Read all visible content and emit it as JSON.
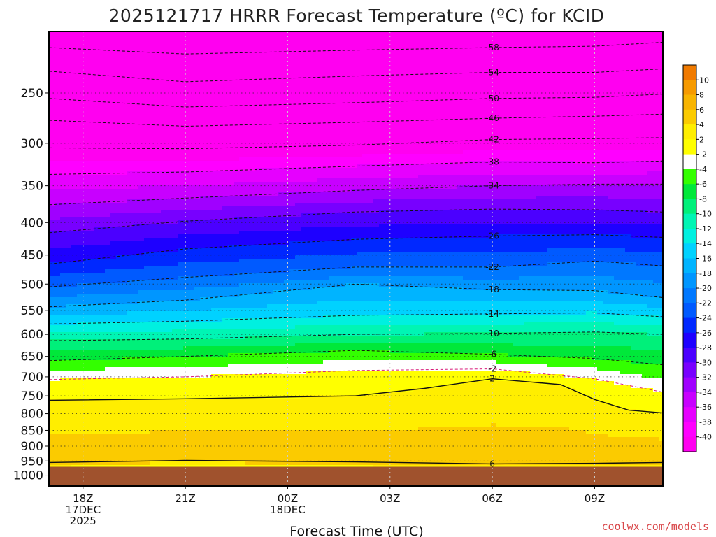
{
  "chart_data": {
    "type": "heatmap",
    "title": "2025121717 HRRR Forecast Temperature (ºC) for KCID",
    "xlabel": "Forecast Time (UTC)",
    "ylabel": "",
    "credit": "coolwx.com/models",
    "x_ticks": [
      {
        "hour": 0,
        "label": "18Z",
        "date": "17DEC",
        "year": "2025"
      },
      {
        "hour": 3,
        "label": "21Z",
        "date": "",
        "year": ""
      },
      {
        "hour": 6,
        "label": "00Z",
        "date": "18DEC",
        "year": ""
      },
      {
        "hour": 9,
        "label": "03Z",
        "date": "",
        "year": ""
      },
      {
        "hour": 12,
        "label": "06Z",
        "date": "",
        "year": ""
      },
      {
        "hour": 15,
        "label": "09Z",
        "date": "",
        "year": ""
      }
    ],
    "xlim": [
      -1,
      17
    ],
    "y_ticks": [
      250,
      300,
      350,
      400,
      450,
      500,
      550,
      600,
      650,
      700,
      750,
      800,
      850,
      900,
      950,
      1000
    ],
    "ylim": [
      200,
      1040
    ],
    "y_scale": "log",
    "ground_pressure": 970,
    "colorbar": {
      "levels": [
        10,
        8,
        6,
        4,
        2,
        -2,
        -4,
        -6,
        -8,
        -10,
        -12,
        -14,
        -16,
        -18,
        -20,
        -22,
        -24,
        -26,
        -28,
        -30,
        -32,
        -34,
        -36,
        -38,
        -40
      ],
      "colors": [
        "#f07a00",
        "#f69a00",
        "#f8b400",
        "#fbcb00",
        "#ffee00",
        "#ffff00",
        "#ffffff",
        "#33ff00",
        "#00e83a",
        "#00f07a",
        "#00f5b4",
        "#00f0e0",
        "#00d2ff",
        "#00b4ff",
        "#0096ff",
        "#0078ff",
        "#005aff",
        "#0028ff",
        "#1e00ff",
        "#4b00ff",
        "#7800ff",
        "#a000ff",
        "#c800ff",
        "#e600ff",
        "#ff00ff",
        "#ff00f0"
      ]
    },
    "contours": [
      {
        "value": -58,
        "label": "-58",
        "points": [
          [
            -1,
            212
          ],
          [
            3,
            217
          ],
          [
            8,
            214
          ],
          [
            12,
            212
          ],
          [
            15,
            211
          ],
          [
            17,
            208
          ]
        ]
      },
      {
        "value": -54,
        "label": "-54",
        "points": [
          [
            -1,
            231
          ],
          [
            3,
            240
          ],
          [
            8,
            235
          ],
          [
            12,
            232
          ],
          [
            15,
            232
          ],
          [
            17,
            229
          ]
        ]
      },
      {
        "value": -50,
        "label": "-50",
        "points": [
          [
            -1,
            255
          ],
          [
            3,
            263
          ],
          [
            8,
            259
          ],
          [
            12,
            255
          ],
          [
            15,
            254
          ],
          [
            17,
            251
          ]
        ]
      },
      {
        "value": -46,
        "label": "-46",
        "points": [
          [
            -1,
            276
          ],
          [
            3,
            282
          ],
          [
            8,
            278
          ],
          [
            12,
            274
          ],
          [
            15,
            272
          ],
          [
            17,
            270
          ]
        ]
      },
      {
        "value": -42,
        "label": "-42",
        "points": [
          [
            -1,
            305
          ],
          [
            3,
            306
          ],
          [
            8,
            302
          ],
          [
            12,
            296
          ],
          [
            15,
            295
          ],
          [
            17,
            294
          ]
        ]
      },
      {
        "value": -38,
        "label": "-38",
        "points": [
          [
            -1,
            336
          ],
          [
            3,
            333
          ],
          [
            8,
            326
          ],
          [
            12,
            321
          ],
          [
            15,
            322
          ],
          [
            17,
            320
          ]
        ]
      },
      {
        "value": -34,
        "label": "-34",
        "points": [
          [
            -1,
            375
          ],
          [
            3,
            366
          ],
          [
            8,
            356
          ],
          [
            12,
            350
          ],
          [
            15,
            348
          ],
          [
            17,
            348
          ]
        ]
      },
      {
        "value": -30,
        "label": "",
        "points": [
          [
            -1,
            415
          ],
          [
            3,
            398
          ],
          [
            8,
            385
          ],
          [
            12,
            381
          ],
          [
            15,
            382
          ],
          [
            17,
            385
          ]
        ]
      },
      {
        "value": -26,
        "label": "-26",
        "points": [
          [
            -1,
            465
          ],
          [
            3,
            440
          ],
          [
            8,
            425
          ],
          [
            12,
            420
          ],
          [
            15,
            418
          ],
          [
            17,
            422
          ]
        ]
      },
      {
        "value": -22,
        "label": "-22",
        "points": [
          [
            -1,
            505
          ],
          [
            3,
            488
          ],
          [
            8,
            470
          ],
          [
            12,
            470
          ],
          [
            15,
            460
          ],
          [
            17,
            468
          ]
        ]
      },
      {
        "value": -18,
        "label": "-18",
        "points": [
          [
            -1,
            543
          ],
          [
            3,
            530
          ],
          [
            8,
            500
          ],
          [
            12,
            510
          ],
          [
            15,
            512
          ],
          [
            17,
            525
          ]
        ]
      },
      {
        "value": -14,
        "label": "-14",
        "points": [
          [
            -1,
            578
          ],
          [
            3,
            572
          ],
          [
            8,
            560
          ],
          [
            12,
            557
          ],
          [
            15,
            555
          ],
          [
            17,
            563
          ]
        ]
      },
      {
        "value": -10,
        "label": "-10",
        "points": [
          [
            -1,
            614
          ],
          [
            3,
            610
          ],
          [
            8,
            600
          ],
          [
            12,
            598
          ],
          [
            15,
            595
          ],
          [
            17,
            600
          ]
        ]
      },
      {
        "value": -6,
        "label": "-6",
        "points": [
          [
            -1,
            660
          ],
          [
            3,
            650
          ],
          [
            8,
            636
          ],
          [
            12,
            645
          ],
          [
            15,
            655
          ],
          [
            17,
            670
          ]
        ]
      },
      {
        "value": -2,
        "label": "-2",
        "points": [
          [
            -1,
            707
          ],
          [
            3,
            700
          ],
          [
            8,
            684
          ],
          [
            12,
            680
          ],
          [
            15,
            705
          ],
          [
            17,
            740
          ]
        ]
      },
      {
        "value": 2,
        "label": "2",
        "points": [
          [
            -1,
            762
          ],
          [
            3,
            758
          ],
          [
            8,
            750
          ],
          [
            10,
            730
          ],
          [
            12,
            705
          ],
          [
            14,
            720
          ],
          [
            15,
            760
          ],
          [
            16,
            790
          ],
          [
            17,
            798
          ]
        ]
      },
      {
        "value": 6,
        "label": "6",
        "points": [
          [
            -1,
            955
          ],
          [
            3,
            948
          ],
          [
            8,
            953
          ],
          [
            12,
            960
          ],
          [
            15,
            958
          ],
          [
            17,
            955
          ]
        ]
      }
    ]
  }
}
